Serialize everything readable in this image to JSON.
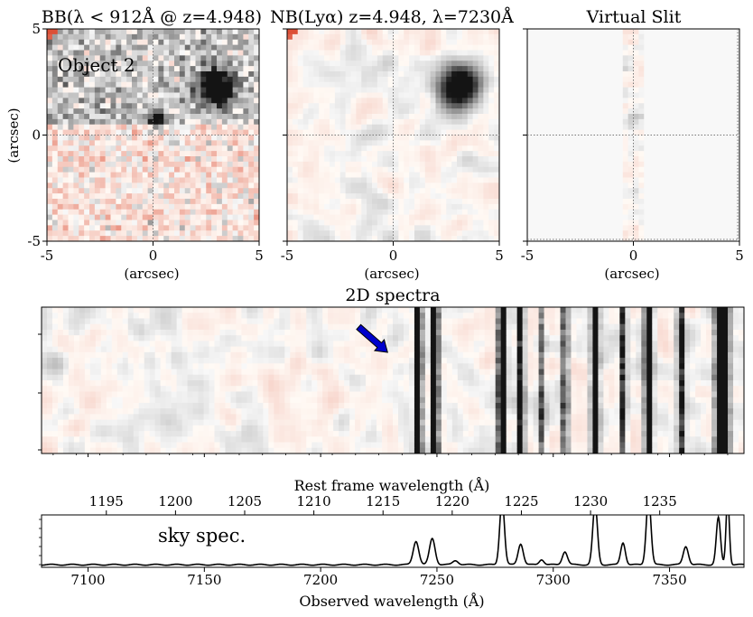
{
  "figure": {
    "panel_titles": {
      "bb": "BB(λ < 912Å @ z=4.948)",
      "nb": "NB(Lyα) z=4.948, λ=7230Å",
      "slit": "Virtual Slit",
      "spec2d": "2D spectra"
    },
    "object_label": "Object 2",
    "sky_label": "sky spec.",
    "colors": {
      "object_label": "#1a1aff",
      "arrow": "#0000cc",
      "grid_dotted": "#808080",
      "negative_cmap": "#e8663a",
      "positive_cmap": "#111111"
    }
  },
  "chart_data": [
    {
      "type": "heatmap",
      "name": "BB image",
      "title": "BB(λ < 912Å @ z=4.948)",
      "xlabel": "(arcsec)",
      "ylabel": "(arcsec)",
      "xlim": [
        -5,
        5
      ],
      "ylim": [
        -5,
        5
      ],
      "xticks": [
        -5,
        0,
        5
      ],
      "yticks": [
        -5,
        0,
        5
      ],
      "crosshair": [
        0,
        0
      ],
      "sources": [
        {
          "x": 3.0,
          "y": 2.3,
          "peak": 1.0,
          "sigma": 0.55
        },
        {
          "x": 0.2,
          "y": 0.7,
          "peak": 0.7,
          "sigma": 0.25
        }
      ]
    },
    {
      "type": "heatmap",
      "name": "NB image",
      "title": "NB(Lyα) z=4.948, λ=7230Å",
      "xlabel": "(arcsec)",
      "xlim": [
        -5,
        5
      ],
      "ylim": [
        -5,
        5
      ],
      "xticks": [
        -5,
        0,
        5
      ],
      "yticks": [
        -5,
        0,
        5
      ],
      "crosshair": [
        0,
        0
      ],
      "sources": [
        {
          "x": 3.1,
          "y": 2.3,
          "peak": 1.0,
          "sigma": 0.65
        }
      ]
    },
    {
      "type": "heatmap",
      "name": "Virtual slit",
      "title": "Virtual Slit",
      "xlabel": "(arcsec)",
      "xlim": [
        -5,
        5
      ],
      "ylim": [
        -5,
        5
      ],
      "xticks": [
        -5,
        0,
        5
      ],
      "yticks": [
        -5,
        0,
        5
      ],
      "slit_width": 1.0,
      "crosshair": [
        0,
        0
      ]
    },
    {
      "type": "heatmap",
      "name": "2D spectrum",
      "title": "2D spectra",
      "xlim": [
        7080,
        7382
      ],
      "arrow_wavelength": 7228,
      "sky_line_wavelengths": [
        7242,
        7249,
        7278,
        7286,
        7295,
        7305,
        7318,
        7330,
        7341,
        7355,
        7371,
        7374
      ]
    },
    {
      "type": "line",
      "name": "sky spectrum",
      "xlabel": "Observed wavelength (Å)",
      "top_xlabel": "Rest frame wavelength (Å)",
      "xlim": [
        7080,
        7382
      ],
      "xticks": [
        7100,
        7150,
        7200,
        7250,
        7300,
        7350
      ],
      "rest_xticks": [
        1195,
        1200,
        1205,
        1210,
        1215,
        1220,
        1225,
        1230,
        1235
      ],
      "redshift": 4.948,
      "ylim": [
        0,
        1.0
      ],
      "lines": [
        {
          "center": 7241,
          "amp": 0.45,
          "sigma": 1.2
        },
        {
          "center": 7248,
          "amp": 0.5,
          "sigma": 1.2
        },
        {
          "center": 7258,
          "amp": 0.08,
          "sigma": 1.2
        },
        {
          "center": 7278,
          "amp": 1.25,
          "sigma": 1.0
        },
        {
          "center": 7286,
          "amp": 0.4,
          "sigma": 1.1
        },
        {
          "center": 7295,
          "amp": 0.1,
          "sigma": 1.0
        },
        {
          "center": 7305,
          "amp": 0.25,
          "sigma": 1.1
        },
        {
          "center": 7318,
          "amp": 1.15,
          "sigma": 1.0
        },
        {
          "center": 7330,
          "amp": 0.42,
          "sigma": 1.0
        },
        {
          "center": 7341,
          "amp": 1.3,
          "sigma": 1.0
        },
        {
          "center": 7357,
          "amp": 0.35,
          "sigma": 1.1
        },
        {
          "center": 7371,
          "amp": 0.9,
          "sigma": 0.9
        },
        {
          "center": 7375,
          "amp": 1.3,
          "sigma": 0.7
        }
      ]
    }
  ]
}
